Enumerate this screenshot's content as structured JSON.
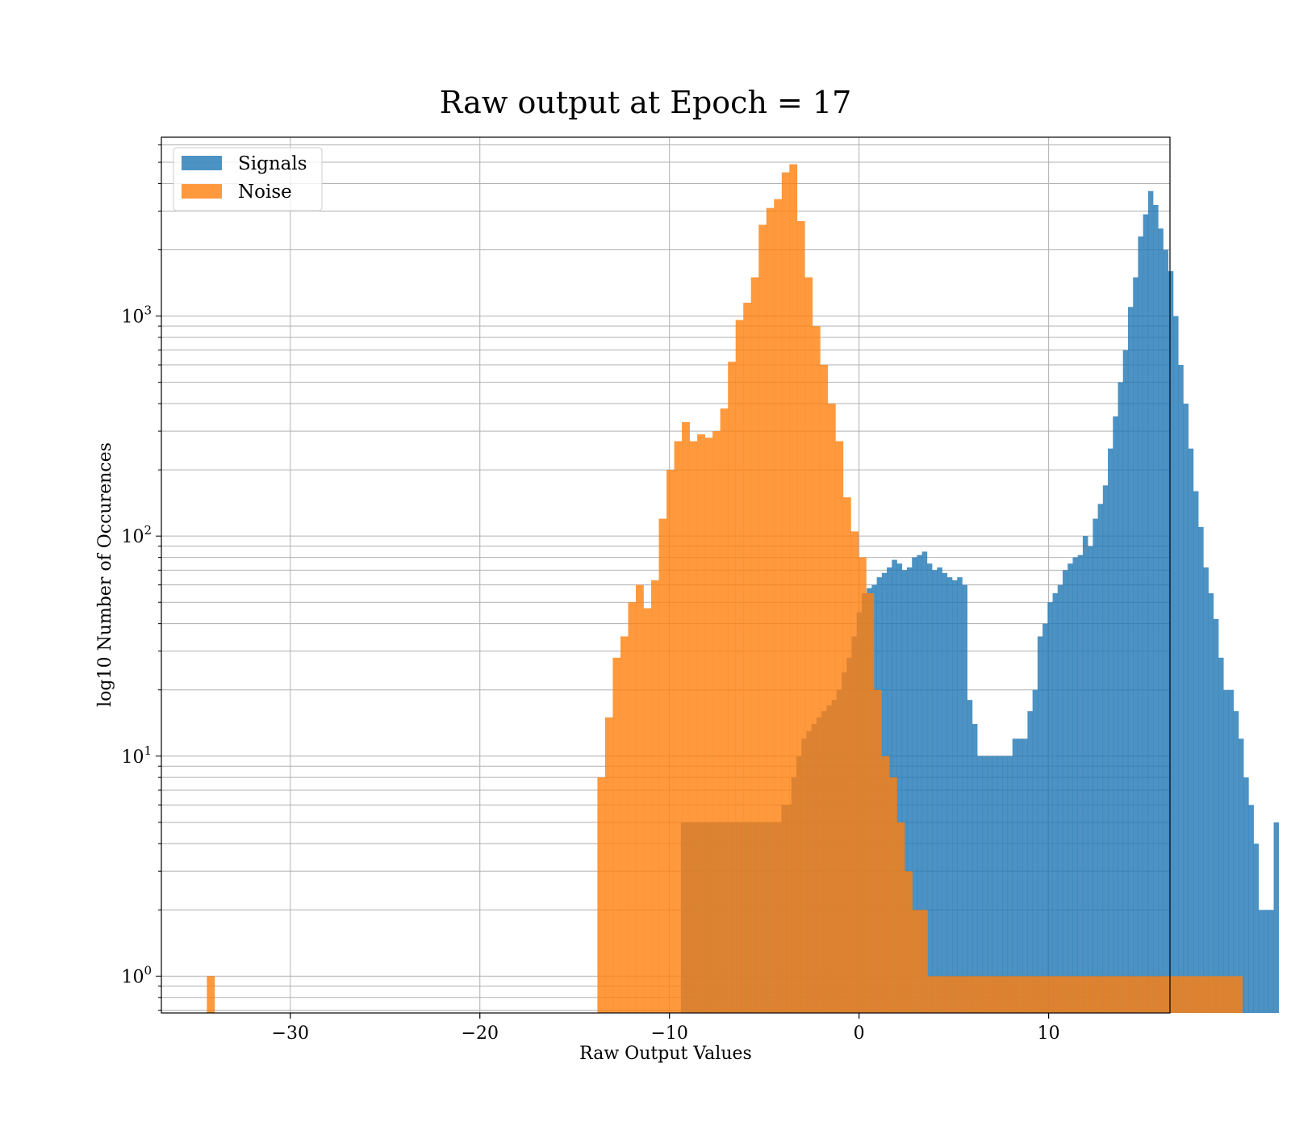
{
  "chart_data": {
    "type": "bar",
    "subtype": "histogram",
    "title": "Raw output at Epoch = 17",
    "xlabel": "Raw Output Values",
    "ylabel": "log10 Number of Occurences",
    "xlim": [
      -36.8,
      16.4
    ],
    "ylim": [
      0.68,
      6500
    ],
    "yscale": "log",
    "grid": true,
    "legend_position": "top-left",
    "xticks": [
      -30,
      -20,
      -10,
      0,
      10
    ],
    "xtick_labels": [
      "−30",
      "−20",
      "−10",
      "0",
      "10"
    ],
    "yticks": [
      1,
      10,
      100,
      1000
    ],
    "ytick_base": "10",
    "ytick_exponents": [
      "0",
      "1",
      "2",
      "3"
    ],
    "legend": [
      {
        "label": "Signals",
        "color": "#1f77b4"
      },
      {
        "label": "Noise",
        "color": "#ff7f0e"
      }
    ],
    "series": [
      {
        "name": "Signals",
        "color": "#1f77b4",
        "opacity": 0.8,
        "bin_width": 0.265,
        "bin_start": -9.4,
        "counts": [
          5,
          5,
          5,
          5,
          5,
          5,
          5,
          5,
          5,
          5,
          5,
          5,
          5,
          5,
          5,
          5,
          5,
          5,
          5,
          5,
          6,
          6,
          8,
          10,
          12,
          13,
          14,
          15,
          16,
          17,
          18,
          20,
          24,
          28,
          35,
          45,
          55,
          58,
          60,
          65,
          68,
          72,
          78,
          75,
          70,
          72,
          80,
          82,
          85,
          75,
          70,
          72,
          68,
          65,
          63,
          65,
          60,
          18,
          14,
          10,
          10,
          10,
          10,
          10,
          10,
          10,
          12,
          12,
          12,
          16,
          20,
          35,
          40,
          50,
          55,
          60,
          70,
          75,
          80,
          82,
          100,
          90,
          120,
          140,
          170,
          250,
          350,
          500,
          700,
          1100,
          1500,
          2300,
          2900,
          3700,
          3200,
          2500,
          2000,
          1600,
          1000,
          600,
          400,
          250,
          160,
          110,
          72,
          55,
          42,
          28,
          20,
          20,
          16,
          12,
          8,
          6,
          4,
          2,
          2,
          2,
          5
        ]
      },
      {
        "name": "Noise",
        "color": "#ff7f0e",
        "opacity": 0.8,
        "bin_width": 0.405,
        "bin_start": -13.8,
        "counts": [
          8,
          15,
          28,
          35,
          50,
          60,
          47,
          63,
          120,
          200,
          270,
          330,
          270,
          290,
          280,
          300,
          380,
          620,
          960,
          1150,
          1500,
          2600,
          3100,
          3400,
          4500,
          4900,
          2700,
          1500,
          900,
          600,
          400,
          270,
          150,
          105,
          80,
          55,
          20,
          10,
          8,
          5,
          3,
          2,
          2,
          1,
          1,
          1,
          1,
          1,
          1,
          1,
          1,
          1,
          1,
          1,
          1,
          1,
          1,
          1,
          1,
          1,
          1,
          1,
          1,
          1,
          1,
          1,
          1,
          1,
          1,
          1,
          1,
          1,
          1,
          1,
          1,
          1,
          1,
          1,
          1,
          1,
          1,
          1,
          1,
          1
        ],
        "outlier_bins": [
          {
            "x": -34.4,
            "count": 1
          }
        ]
      }
    ]
  }
}
